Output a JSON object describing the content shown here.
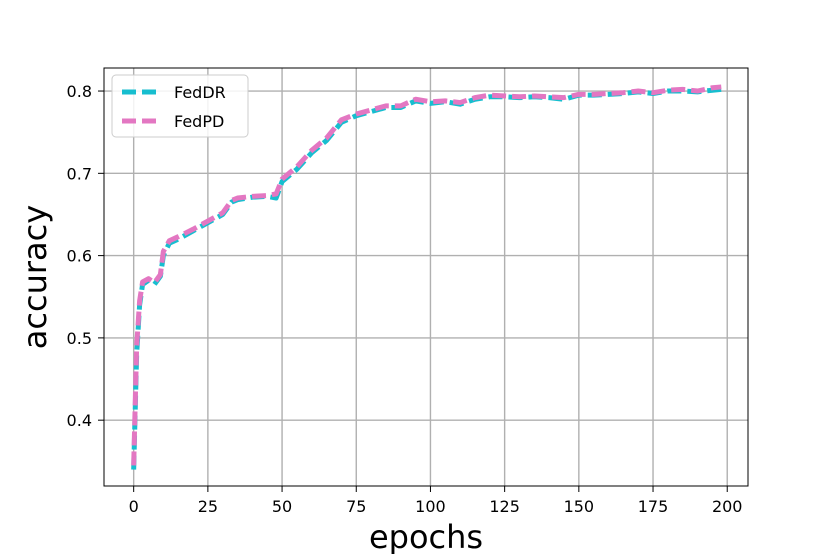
{
  "chart_data": {
    "type": "line",
    "xlabel": "epochs",
    "ylabel": "accuracy",
    "xlim": [
      -10,
      207
    ],
    "ylim": [
      0.32,
      0.828
    ],
    "xticks": [
      0,
      25,
      50,
      75,
      100,
      125,
      150,
      175,
      200
    ],
    "yticks": [
      0.4,
      0.5,
      0.6,
      0.7,
      0.8
    ],
    "xtick_labels": [
      "0",
      "25",
      "50",
      "75",
      "100",
      "125",
      "150",
      "175",
      "200"
    ],
    "ytick_labels": [
      "0.4",
      "0.5",
      "0.6",
      "0.7",
      "0.8"
    ],
    "grid": true,
    "legend": "top-left",
    "series": [
      {
        "name": "FedDR",
        "color": "#17becf",
        "x": [
          0,
          1,
          2,
          3,
          5,
          7,
          9,
          10,
          12,
          15,
          20,
          25,
          30,
          33,
          35,
          40,
          45,
          48,
          50,
          55,
          60,
          65,
          70,
          75,
          80,
          85,
          90,
          95,
          100,
          105,
          110,
          115,
          120,
          125,
          130,
          135,
          140,
          145,
          150,
          155,
          160,
          165,
          170,
          175,
          180,
          185,
          190,
          195,
          198
        ],
        "y": [
          0.34,
          0.48,
          0.54,
          0.565,
          0.57,
          0.565,
          0.575,
          0.6,
          0.615,
          0.62,
          0.63,
          0.64,
          0.65,
          0.665,
          0.668,
          0.671,
          0.672,
          0.67,
          0.69,
          0.705,
          0.725,
          0.74,
          0.762,
          0.77,
          0.775,
          0.78,
          0.78,
          0.788,
          0.785,
          0.787,
          0.784,
          0.79,
          0.793,
          0.793,
          0.792,
          0.793,
          0.792,
          0.79,
          0.795,
          0.795,
          0.796,
          0.797,
          0.799,
          0.797,
          0.8,
          0.8,
          0.799,
          0.801,
          0.802
        ]
      },
      {
        "name": "FedPD",
        "color": "#e377c2",
        "x": [
          0,
          1,
          2,
          3,
          5,
          7,
          9,
          10,
          12,
          15,
          20,
          25,
          30,
          33,
          35,
          40,
          45,
          48,
          50,
          55,
          60,
          65,
          70,
          75,
          80,
          85,
          90,
          95,
          100,
          105,
          110,
          115,
          120,
          125,
          130,
          135,
          140,
          145,
          150,
          155,
          160,
          165,
          170,
          175,
          180,
          185,
          190,
          195,
          198
        ],
        "y": [
          0.345,
          0.49,
          0.545,
          0.568,
          0.572,
          0.567,
          0.577,
          0.605,
          0.618,
          0.623,
          0.632,
          0.642,
          0.652,
          0.667,
          0.67,
          0.672,
          0.673,
          0.675,
          0.693,
          0.708,
          0.728,
          0.743,
          0.765,
          0.772,
          0.777,
          0.782,
          0.782,
          0.79,
          0.787,
          0.788,
          0.786,
          0.792,
          0.795,
          0.794,
          0.793,
          0.794,
          0.793,
          0.792,
          0.796,
          0.796,
          0.797,
          0.798,
          0.8,
          0.798,
          0.801,
          0.802,
          0.8,
          0.804,
          0.805
        ]
      }
    ]
  }
}
